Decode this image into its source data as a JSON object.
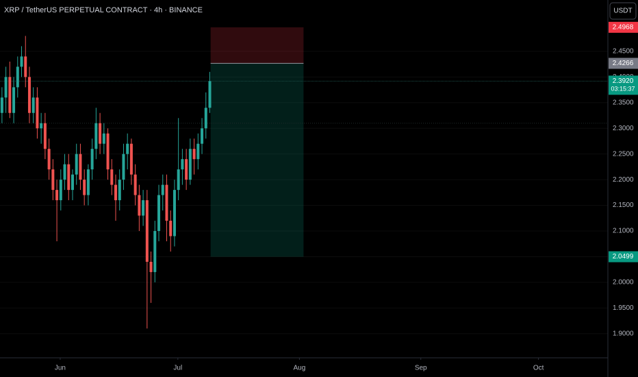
{
  "header": {
    "symbol_title": "XRP / TetherUS PERPETUAL CONTRACT · 4h · BINANCE",
    "currency_button": "USDT"
  },
  "chart_data": {
    "type": "candlestick",
    "open": [
      2.33,
      2.36,
      2.4,
      2.33,
      2.38,
      2.42,
      2.44,
      2.4,
      2.33,
      2.36,
      2.3,
      2.31,
      2.26,
      2.22,
      2.18,
      2.16,
      2.2,
      2.23,
      2.18,
      2.21,
      2.25,
      2.2,
      2.17,
      2.22,
      2.26,
      2.31,
      2.27,
      2.29,
      2.22,
      2.19,
      2.16,
      2.2,
      2.25,
      2.27,
      2.21,
      2.17,
      2.13,
      2.16,
      2.04,
      2.02,
      2.1,
      2.17,
      2.19,
      2.12,
      2.09,
      2.18,
      2.22,
      2.24,
      2.2,
      2.26,
      2.24,
      2.27,
      2.3,
      2.34
    ],
    "high": [
      2.38,
      2.42,
      2.43,
      2.4,
      2.44,
      2.46,
      2.48,
      2.42,
      2.38,
      2.38,
      2.33,
      2.33,
      2.28,
      2.24,
      2.2,
      2.22,
      2.25,
      2.25,
      2.22,
      2.27,
      2.27,
      2.22,
      2.23,
      2.28,
      2.34,
      2.33,
      2.31,
      2.3,
      2.24,
      2.21,
      2.22,
      2.27,
      2.29,
      2.28,
      2.23,
      2.19,
      2.18,
      2.18,
      2.06,
      2.12,
      2.19,
      2.21,
      2.21,
      2.14,
      2.2,
      2.32,
      2.26,
      2.26,
      2.28,
      2.28,
      2.29,
      2.32,
      2.37,
      2.41
    ],
    "low": [
      2.31,
      2.33,
      2.32,
      2.31,
      2.36,
      2.4,
      2.38,
      2.31,
      2.31,
      2.28,
      2.27,
      2.24,
      2.2,
      2.16,
      2.08,
      2.14,
      2.18,
      2.16,
      2.16,
      2.19,
      2.18,
      2.15,
      2.15,
      2.2,
      2.24,
      2.25,
      2.25,
      2.2,
      2.17,
      2.12,
      2.14,
      2.18,
      2.22,
      2.19,
      2.15,
      2.1,
      2.11,
      1.91,
      1.96,
      2.0,
      2.08,
      2.14,
      2.08,
      2.06,
      2.07,
      2.16,
      2.19,
      2.18,
      2.19,
      2.21,
      2.22,
      2.25,
      2.28,
      2.33
    ],
    "close": [
      2.36,
      2.4,
      2.33,
      2.38,
      2.42,
      2.44,
      2.4,
      2.33,
      2.36,
      2.3,
      2.31,
      2.26,
      2.22,
      2.18,
      2.16,
      2.2,
      2.23,
      2.18,
      2.21,
      2.25,
      2.2,
      2.17,
      2.22,
      2.26,
      2.31,
      2.27,
      2.29,
      2.22,
      2.19,
      2.16,
      2.2,
      2.25,
      2.27,
      2.21,
      2.17,
      2.13,
      2.16,
      2.04,
      2.02,
      2.1,
      2.17,
      2.19,
      2.12,
      2.09,
      2.18,
      2.22,
      2.24,
      2.2,
      2.26,
      2.24,
      2.27,
      2.3,
      2.34,
      2.392
    ],
    "up_color": "#26a69a",
    "down_color": "#ef5350",
    "xlim": [
      0,
      155
    ],
    "xticks": [
      {
        "value": 15.35,
        "label": "Jun"
      },
      {
        "value": 45.35,
        "label": "Jul"
      },
      {
        "value": 76.35,
        "label": "Aug"
      },
      {
        "value": 107.3,
        "label": "Sep"
      },
      {
        "value": 137.3,
        "label": "Oct"
      }
    ],
    "ylim": [
      1.853,
      2.55
    ],
    "yticks": [
      {
        "value": 1.9,
        "label": "1.9000"
      },
      {
        "value": 1.95,
        "label": "1.9500"
      },
      {
        "value": 2.0,
        "label": "2.0000"
      },
      {
        "value": 2.05,
        "label": "2.0500"
      },
      {
        "value": 2.1,
        "label": "2.1000"
      },
      {
        "value": 2.15,
        "label": "2.1500"
      },
      {
        "value": 2.2,
        "label": "2.2000"
      },
      {
        "value": 2.25,
        "label": "2.2500"
      },
      {
        "value": 2.3,
        "label": "2.3000"
      },
      {
        "value": 2.35,
        "label": "2.3500"
      },
      {
        "value": 2.4,
        "label": "2.4000"
      },
      {
        "value": 2.45,
        "label": "2.4500"
      }
    ],
    "position": {
      "entry": 2.4266,
      "stop": 2.4968,
      "target": 2.0499,
      "x_range": [
        53.7,
        77.4
      ]
    },
    "last_price": {
      "value": 2.392,
      "label": "2.3920",
      "countdown": "03:15:37"
    },
    "level_line": 2.31
  }
}
